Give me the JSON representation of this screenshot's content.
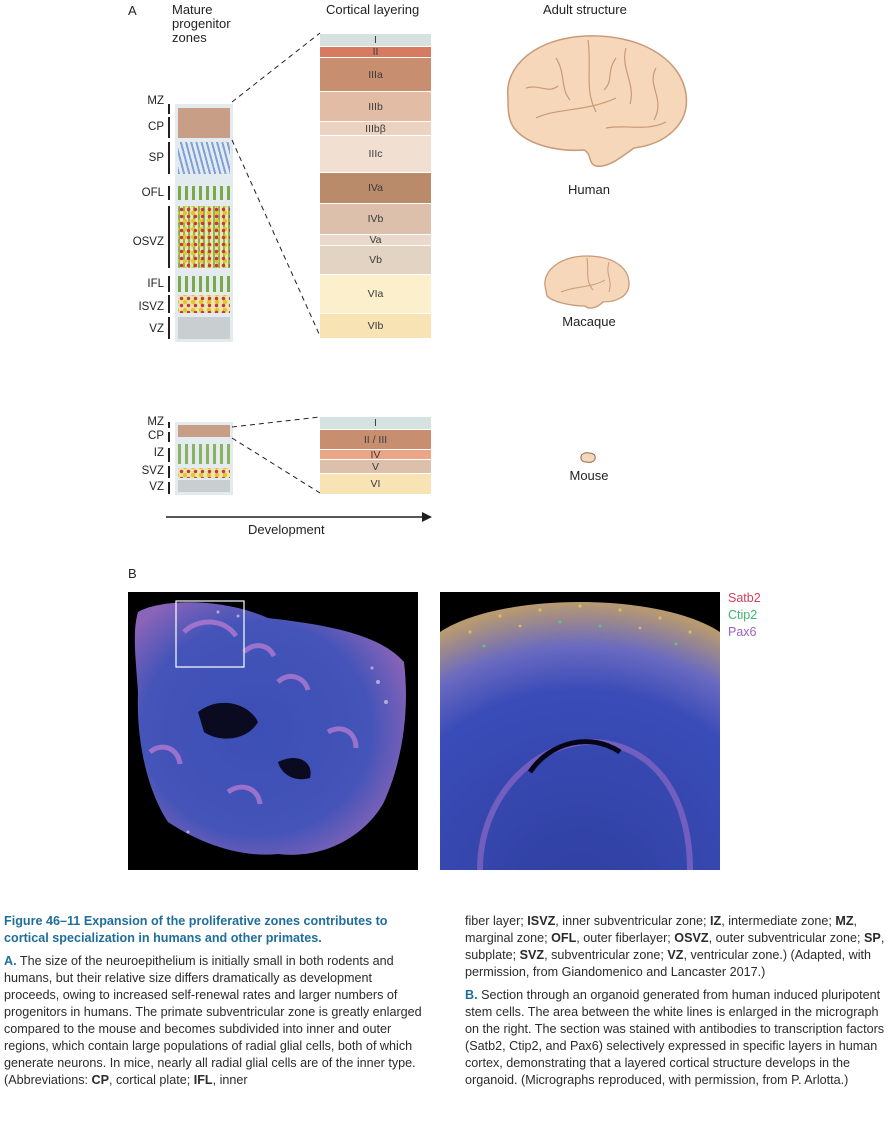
{
  "panel_a": {
    "letter": "A",
    "headers": {
      "progenitor": [
        "Mature",
        "progenitor",
        "zones"
      ],
      "layering": "Cortical layering",
      "adult": "Adult structure"
    },
    "primate_zones": [
      "MZ",
      "CP",
      "SP",
      "OFL",
      "OSVZ",
      "IFL",
      "ISVZ",
      "VZ"
    ],
    "primate_layers": [
      "I",
      "II",
      "IIIa",
      "IIIb",
      "IIIbβ",
      "IIIc",
      "IVa",
      "IVb",
      "Va",
      "Vb",
      "VIa",
      "VIb"
    ],
    "mouse_zones": [
      "MZ",
      "CP",
      "IZ",
      "SVZ",
      "VZ"
    ],
    "mouse_layers": [
      "I",
      "II / III",
      "IV",
      "V",
      "VI"
    ],
    "species": [
      "Human",
      "Macaque",
      "Mouse"
    ],
    "axis_label": "Development",
    "colors": {
      "cp": "#c89e86",
      "vz": "#c9cfd0",
      "column_bg": "#e3ebee",
      "layer_i": "#d6e2df",
      "layer_ii": "#d77a60",
      "layer_iiia": "#c88e70",
      "layer_light": "#e4c3ae",
      "layer_iva": "#b98b6b",
      "layer_v": "#dfcbba",
      "layer_vi": "#f8e3b4",
      "brain": "#f6d7b9",
      "brain_line": "#c99a78"
    }
  },
  "panel_b": {
    "letter": "B",
    "stains": [
      {
        "name": "Satb2",
        "color": "#d2405a"
      },
      {
        "name": "Ctip2",
        "color": "#3fb46a"
      },
      {
        "name": "Pax6",
        "color": "#9a62c7"
      }
    ]
  },
  "caption": {
    "figure_label": "Figure 46–11",
    "title": "Expansion of the proliferative zones contributes to cortical specialization in humans and other primates.",
    "a_label": "A.",
    "a_text": "The size of the neuroepithelium is initially small in both rodents and humans, but their relative size differs dramatically as development proceeds, owing to increased self-renewal rates and larger numbers of progenitors in humans. The primate subventricular zone is greatly enlarged compared to the mouse and becomes subdivided into inner and outer regions, which contain large populations of radial glial cells, both of which generate neurons. In mice, nearly all radial glial cells are of the inner type. (Abbreviations:",
    "abbreviations": [
      {
        "abbr": "CP",
        "def": "cortical plate"
      },
      {
        "abbr": "IFL",
        "def": "inner fiber layer"
      },
      {
        "abbr": "ISVZ",
        "def": "inner subventricular zone"
      },
      {
        "abbr": "IZ",
        "def": "intermediate zone"
      },
      {
        "abbr": "MZ",
        "def": "marginal zone"
      },
      {
        "abbr": "OFL",
        "def": "outer fiberlayer"
      },
      {
        "abbr": "OSVZ",
        "def": "outer subventricular zone"
      },
      {
        "abbr": "SP",
        "def": "subplate"
      },
      {
        "abbr": "SVZ",
        "def": "subventricular zone"
      },
      {
        "abbr": "VZ",
        "def": "ventricular zone."
      }
    ],
    "a_citation": ") (Adapted, with permission, from Giandomenico and Lancaster 2017.)",
    "b_label": "B.",
    "b_text": "Section through an organoid generated from human induced pluripotent stem cells. The area between the white lines is enlarged in the micrograph on the right. The section was stained with antibodies to transcription factors (Satb2, Ctip2, and Pax6) selectively expressed in specific layers in human cortex, demonstrating that a layered cortical structure develops in the organoid. (Micrographs reproduced, with permission, from P. Arlotta.)"
  }
}
